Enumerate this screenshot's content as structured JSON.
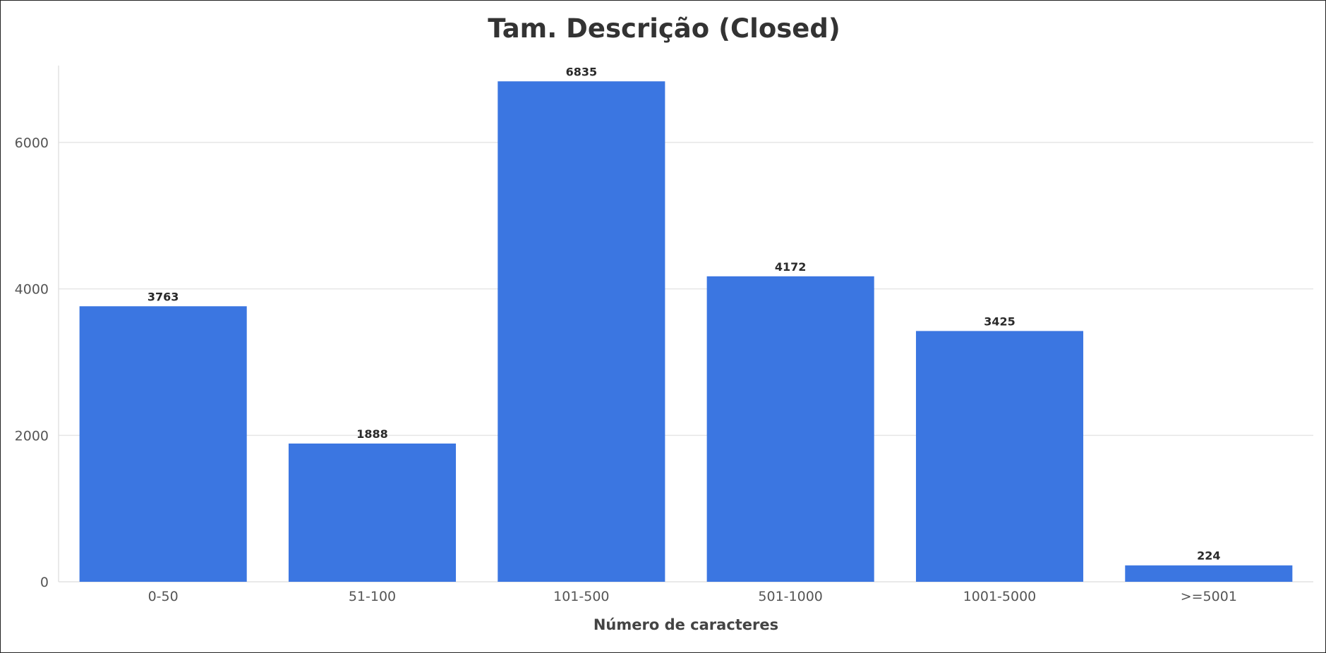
{
  "chart_data": {
    "type": "bar",
    "title": "Tam. Descrição (Closed)",
    "xlabel": "Número de caracteres",
    "ylabel": "",
    "categories": [
      "0-50",
      "51-100",
      "101-500",
      "501-1000",
      "1001-5000",
      ">=5001"
    ],
    "values": [
      3763,
      1888,
      6835,
      4172,
      3425,
      224
    ],
    "data_labels": [
      "3763",
      "1888",
      "6835",
      "4172",
      "3425",
      "224"
    ],
    "yticks": [
      0,
      2000,
      4000,
      6000
    ],
    "ytick_labels": [
      "0",
      "2000",
      "4000",
      "6000"
    ],
    "ylim": [
      0,
      7050
    ],
    "grid": true,
    "legend": "none",
    "bar_color": "#3b76e1"
  }
}
